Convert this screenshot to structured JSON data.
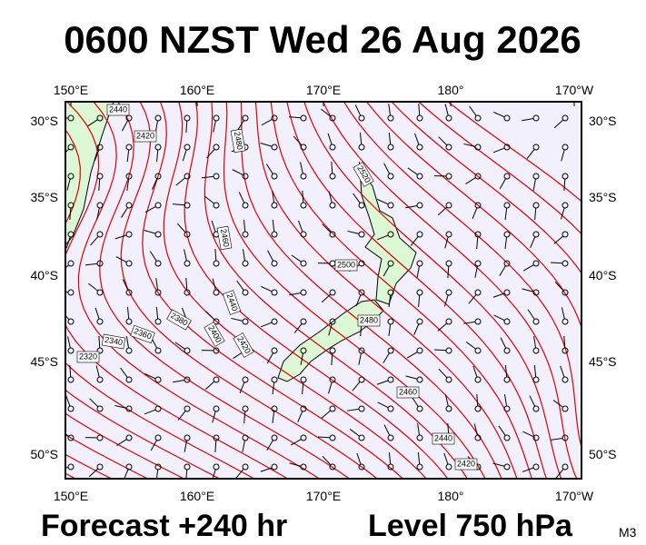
{
  "header": {
    "title": "0600 NZST Wed 26 Aug 2026"
  },
  "map": {
    "lon_labels": [
      "150°E",
      "160°E",
      "170°E",
      "180°",
      "170°W"
    ],
    "lat_labels": [
      "30°S",
      "35°S",
      "40°S",
      "45°S",
      "50°S"
    ],
    "contour_labels": [
      "2440",
      "2420",
      "2480",
      "2520",
      "2460",
      "2500",
      "2480",
      "2440",
      "2380",
      "2360",
      "2340",
      "2320",
      "2400",
      "2420",
      "2460",
      "2440",
      "2420"
    ]
  },
  "footer": {
    "forecast": "Forecast +240 hr",
    "level": "Level 750 hPa",
    "code": "M3"
  }
}
